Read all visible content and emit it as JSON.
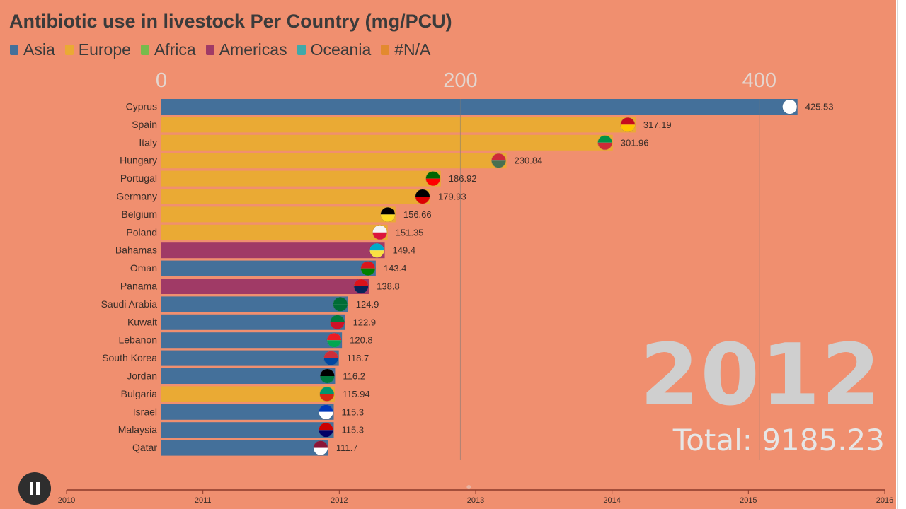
{
  "title": "Antibiotic use in livestock Per Country (mg/PCU)",
  "legend": [
    {
      "label": "Asia",
      "color": "#44709a"
    },
    {
      "label": "Europe",
      "color": "#eaaa34"
    },
    {
      "label": "Africa",
      "color": "#77bb4c"
    },
    {
      "label": "Americas",
      "color": "#a03a66"
    },
    {
      "label": "Oceania",
      "color": "#3fa9a9"
    },
    {
      "label": "#N/A",
      "color": "#e38a2f"
    }
  ],
  "year": "2012",
  "total_label": "Total: 9185.23",
  "controls": {
    "pause_icon": "pause-icon"
  },
  "chart_data": {
    "type": "bar",
    "orientation": "horizontal",
    "title": "Antibiotic use in livestock Per Country (mg/PCU)",
    "xaxis_ticks": [
      "0",
      "200",
      "400"
    ],
    "xlim": [
      0,
      450
    ],
    "categories": [
      "Cyprus",
      "Spain",
      "Italy",
      "Hungary",
      "Portugal",
      "Germany",
      "Belgium",
      "Poland",
      "Bahamas",
      "Oman",
      "Panama",
      "Saudi Arabia",
      "Kuwait",
      "Lebanon",
      "South Korea",
      "Jordan",
      "Bulgaria",
      "Israel",
      "Malaysia",
      "Qatar"
    ],
    "values": [
      425.53,
      317.19,
      301.96,
      230.84,
      186.92,
      179.93,
      156.66,
      151.35,
      149.4,
      143.4,
      138.8,
      124.9,
      122.9,
      120.8,
      118.7,
      116.2,
      115.94,
      115.3,
      115.3,
      111.7
    ],
    "value_labels": [
      "425.53",
      "317.19",
      "301.96",
      "230.84",
      "186.92",
      "179.93",
      "156.66",
      "151.35",
      "149.4",
      "143.4",
      "138.8",
      "124.9",
      "122.9",
      "120.8",
      "118.7",
      "116.2",
      "115.94",
      "115.3",
      "115.3",
      "111.7"
    ],
    "regions": [
      "Asia",
      "Europe",
      "Europe",
      "Europe",
      "Europe",
      "Europe",
      "Europe",
      "Europe",
      "Americas",
      "Asia",
      "Americas",
      "Asia",
      "Asia",
      "Asia",
      "Asia",
      "Asia",
      "Europe",
      "Asia",
      "Asia",
      "Asia"
    ],
    "flag_icons": [
      "cyprus-flag-icon",
      "spain-flag-icon",
      "italy-flag-icon",
      "hungary-flag-icon",
      "portugal-flag-icon",
      "germany-flag-icon",
      "belgium-flag-icon",
      "poland-flag-icon",
      "bahamas-flag-icon",
      "oman-flag-icon",
      "panama-flag-icon",
      "saudi-arabia-flag-icon",
      "kuwait-flag-icon",
      "lebanon-flag-icon",
      "south-korea-flag-icon",
      "jordan-flag-icon",
      "bulgaria-flag-icon",
      "israel-flag-icon",
      "malaysia-flag-icon",
      "qatar-flag-icon"
    ],
    "timeline": {
      "ticks": [
        "2010",
        "2011",
        "2012",
        "2013",
        "2014",
        "2015",
        "2016"
      ],
      "range": [
        2010,
        2016
      ],
      "current": 2012.95
    }
  }
}
